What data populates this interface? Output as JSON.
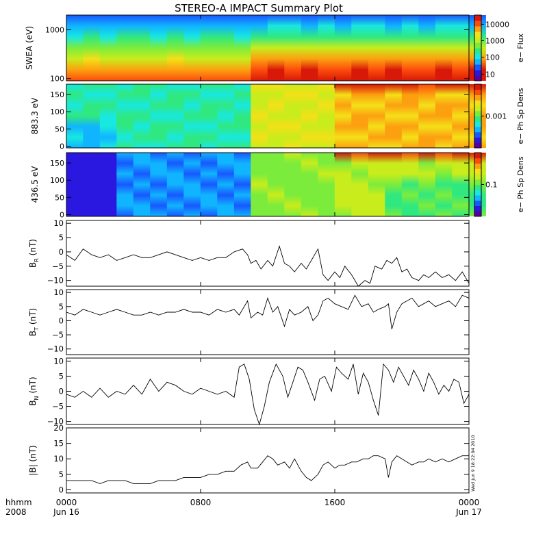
{
  "title": "STEREO-A IMPACT Summary Plot",
  "time_axis": {
    "row1_label": "hhmm",
    "row2_label": "2008",
    "ticks": [
      {
        "hours": 0,
        "top": "0000",
        "bottom": "Jun 16"
      },
      {
        "hours": 8,
        "top": "0800",
        "bottom": ""
      },
      {
        "hours": 16,
        "top": "1600",
        "bottom": ""
      },
      {
        "hours": 24,
        "top": "0000",
        "bottom": "Jun 17"
      }
    ],
    "range_hours": [
      0,
      24
    ]
  },
  "stamp": "Wed Jun 9 18:22:04 2010",
  "colormap": [
    "#5a00a0",
    "#2a18e0",
    "#1858ff",
    "#10b4ff",
    "#18e8e0",
    "#30e880",
    "#7cec3c",
    "#c8ec1c",
    "#f4e018",
    "#fca010",
    "#fc4c0c",
    "#d81808"
  ],
  "spectrograms": [
    {
      "id": "swea",
      "ylabel": "SWEA (eV)",
      "scale": "log",
      "yrange": [
        90,
        2000
      ],
      "yticks": [
        {
          "v": 100,
          "label": "100"
        },
        {
          "v": 1000,
          "label": "1000"
        }
      ],
      "colorbar": {
        "label": "e− Flux",
        "ticks": [
          {
            "f": 0.1,
            "label": "10"
          },
          {
            "f": 0.36,
            "label": "100"
          },
          {
            "f": 0.61,
            "label": "1000"
          },
          {
            "f": 0.86,
            "label": "10000"
          }
        ]
      }
    },
    {
      "id": "pad883",
      "ylabel": "883.3 eV",
      "scale": "linear",
      "yrange": [
        -5,
        180
      ],
      "yticks": [
        {
          "v": 0,
          "label": "0"
        },
        {
          "v": 50,
          "label": "50"
        },
        {
          "v": 100,
          "label": "100"
        },
        {
          "v": 150,
          "label": "150"
        }
      ],
      "colorbar": {
        "label": "e− Ph Sp Dens",
        "ticks": [
          {
            "f": 0.5,
            "label": "0.001"
          }
        ]
      }
    },
    {
      "id": "pad436",
      "ylabel": "436.5 eV",
      "scale": "linear",
      "yrange": [
        -5,
        180
      ],
      "yticks": [
        {
          "v": 0,
          "label": "0"
        },
        {
          "v": 50,
          "label": "50"
        },
        {
          "v": 100,
          "label": "100"
        },
        {
          "v": 150,
          "label": "150"
        }
      ],
      "colorbar": {
        "label": "e− Ph Sp Dens",
        "ticks": [
          {
            "f": 0.5,
            "label": "0.1"
          }
        ]
      }
    }
  ],
  "chart_data": {
    "type": "line",
    "x_unit": "hours since 0000 Jun 16 2008",
    "panels": [
      {
        "id": "br",
        "ylabel": "B",
        "ylabel_sub": "R",
        "ylabel_unit": " (nT)",
        "ylim": [
          -12,
          11
        ],
        "yticks": [
          -10,
          -5,
          0,
          5,
          10
        ],
        "x": [
          0,
          0.5,
          1,
          1.5,
          2,
          2.5,
          3,
          3.5,
          4,
          4.5,
          5,
          5.5,
          6,
          6.5,
          7,
          7.5,
          8,
          8.5,
          9,
          9.5,
          10,
          10.5,
          10.8,
          11,
          11.3,
          11.6,
          12,
          12.3,
          12.7,
          13,
          13.3,
          13.6,
          14,
          14.3,
          14.6,
          15,
          15.3,
          15.6,
          16,
          16.3,
          16.6,
          17,
          17.4,
          17.8,
          18.1,
          18.4,
          18.8,
          19.1,
          19.4,
          19.7,
          20,
          20.3,
          20.6,
          21,
          21.3,
          21.6,
          22,
          22.4,
          22.8,
          23.2,
          23.6,
          24
        ],
        "y": [
          -1,
          -3,
          1,
          -1,
          -2,
          -1,
          -3,
          -2,
          -1,
          -2,
          -2,
          -1,
          0,
          -1,
          -2,
          -3,
          -2,
          -3,
          -2,
          -2,
          0,
          1,
          -1,
          -4,
          -3,
          -6,
          -3,
          -5,
          2,
          -4,
          -5,
          -7,
          -4,
          -6,
          -3,
          1,
          -8,
          -10,
          -7,
          -9,
          -5,
          -8,
          -12,
          -10,
          -11,
          -5,
          -6,
          -3,
          -4,
          -2,
          -7,
          -6,
          -9,
          -10,
          -8,
          -9,
          -7,
          -9,
          -8,
          -10,
          -7,
          -11
        ]
      },
      {
        "id": "bt",
        "ylabel": "B",
        "ylabel_sub": "T",
        "ylabel_unit": " (nT)",
        "ylim": [
          -12,
          11
        ],
        "yticks": [
          -10,
          -5,
          0,
          5,
          10
        ],
        "x": [
          0,
          0.5,
          1,
          1.5,
          2,
          2.5,
          3,
          3.5,
          4,
          4.5,
          5,
          5.5,
          6,
          6.5,
          7,
          7.5,
          8,
          8.5,
          9,
          9.5,
          10,
          10.3,
          10.8,
          11,
          11.4,
          11.7,
          12,
          12.3,
          12.6,
          13,
          13.3,
          13.6,
          14,
          14.4,
          14.7,
          15,
          15.3,
          15.6,
          16,
          16.4,
          16.8,
          17.2,
          17.6,
          18,
          18.3,
          18.6,
          19,
          19.2,
          19.4,
          19.7,
          20,
          20.3,
          20.6,
          21,
          21.3,
          21.6,
          22,
          22.4,
          22.8,
          23.2,
          23.6,
          24
        ],
        "y": [
          3,
          2,
          4,
          3,
          2,
          3,
          4,
          3,
          2,
          2,
          3,
          2,
          3,
          3,
          4,
          3,
          3,
          2,
          4,
          3,
          4,
          2,
          7,
          1,
          3,
          2,
          8,
          3,
          5,
          -2,
          4,
          2,
          3,
          5,
          0,
          2,
          7,
          8,
          6,
          5,
          4,
          9,
          5,
          6,
          3,
          4,
          5,
          6,
          -3,
          3,
          6,
          7,
          8,
          5,
          6,
          7,
          5,
          6,
          7,
          5,
          9,
          8
        ]
      },
      {
        "id": "bn",
        "ylabel": "B",
        "ylabel_sub": "N",
        "ylabel_unit": " (nT)",
        "ylim": [
          -11,
          11
        ],
        "yticks": [
          -10,
          -5,
          0,
          5,
          10
        ],
        "x": [
          0,
          0.5,
          1,
          1.5,
          2,
          2.5,
          3,
          3.5,
          4,
          4.5,
          5,
          5.5,
          6,
          6.5,
          7,
          7.5,
          8,
          8.5,
          9,
          9.5,
          10,
          10.3,
          10.6,
          10.9,
          11.2,
          11.5,
          11.8,
          12.1,
          12.5,
          12.9,
          13.2,
          13.5,
          13.8,
          14.1,
          14.4,
          14.8,
          15.1,
          15.4,
          15.8,
          16.1,
          16.4,
          16.8,
          17.1,
          17.4,
          17.7,
          18,
          18.3,
          18.6,
          18.9,
          19.2,
          19.5,
          19.8,
          20.1,
          20.4,
          20.7,
          21,
          21.3,
          21.6,
          21.9,
          22.2,
          22.5,
          22.8,
          23.1,
          23.4,
          23.7,
          24
        ],
        "y": [
          -1,
          -2,
          0,
          -2,
          1,
          -2,
          0,
          -1,
          2,
          -1,
          4,
          0,
          3,
          2,
          0,
          -1,
          1,
          0,
          -1,
          0,
          -2,
          8,
          9,
          4,
          -6,
          -11,
          -5,
          3,
          9,
          5,
          -2,
          3,
          8,
          7,
          3,
          -3,
          4,
          5,
          0,
          8,
          6,
          4,
          9,
          -1,
          6,
          3,
          -3,
          -8,
          9,
          7,
          3,
          8,
          5,
          2,
          7,
          4,
          0,
          6,
          3,
          -1,
          2,
          0,
          4,
          3,
          -4,
          -1
        ]
      },
      {
        "id": "bmag",
        "ylabel": "|B| (nT)",
        "ylabel_sub": "",
        "ylabel_unit": "",
        "ylim": [
          -1,
          20
        ],
        "yticks": [
          0,
          5,
          10,
          15,
          20
        ],
        "x": [
          0,
          0.5,
          1,
          1.5,
          2,
          2.5,
          3,
          3.5,
          4,
          4.5,
          5,
          5.5,
          6,
          6.5,
          7,
          7.5,
          8,
          8.5,
          9,
          9.5,
          10,
          10.4,
          10.8,
          11,
          11.4,
          11.7,
          12,
          12.3,
          12.6,
          13,
          13.3,
          13.6,
          14,
          14.3,
          14.6,
          15,
          15.3,
          15.6,
          16,
          16.3,
          16.6,
          17,
          17.3,
          17.7,
          18,
          18.3,
          18.6,
          19,
          19.2,
          19.4,
          19.7,
          20,
          20.3,
          20.6,
          21,
          21.3,
          21.6,
          22,
          22.4,
          22.8,
          23.2,
          23.6,
          24
        ],
        "y": [
          3,
          3,
          3,
          3,
          2,
          3,
          3,
          3,
          2,
          2,
          2,
          3,
          3,
          3,
          4,
          4,
          4,
          5,
          5,
          6,
          6,
          8,
          9,
          7,
          7,
          9,
          11,
          10,
          8,
          9,
          7,
          10,
          6,
          4,
          3,
          5,
          8,
          9,
          7,
          8,
          8,
          9,
          9,
          10,
          10,
          11,
          11,
          10,
          4,
          9,
          11,
          10,
          9,
          8,
          9,
          9,
          10,
          9,
          10,
          9,
          10,
          11,
          11
        ]
      }
    ]
  }
}
